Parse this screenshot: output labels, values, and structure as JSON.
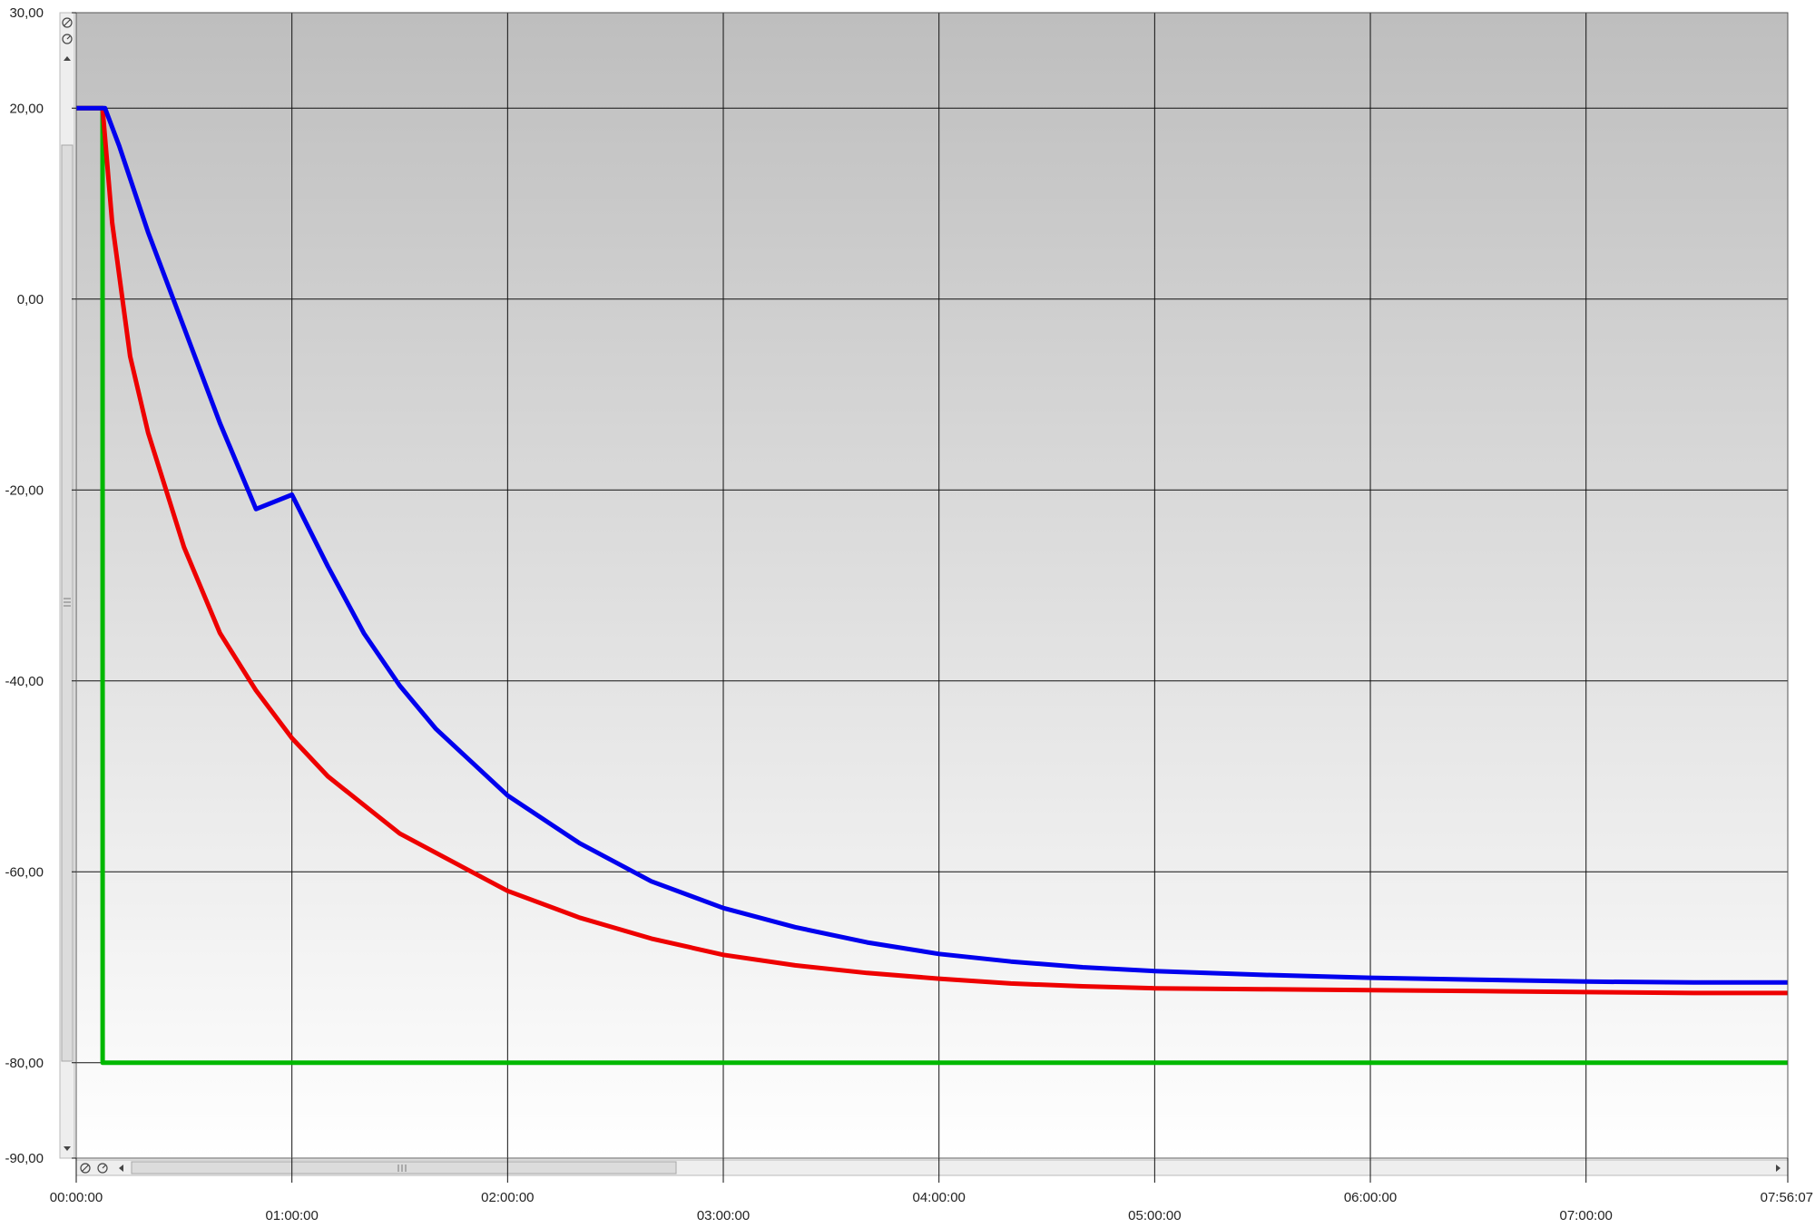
{
  "chart_data": {
    "type": "line",
    "title": "",
    "xlabel": "",
    "ylabel": "",
    "x_unit": "hh:mm:ss",
    "xlim_seconds": [
      0,
      28567
    ],
    "ylim": [
      -90,
      30
    ],
    "grid": true,
    "background": {
      "top": "#bebebe",
      "bottom": "#ffffff"
    },
    "y_ticks": [
      {
        "value": 30,
        "label": "30,00"
      },
      {
        "value": 20,
        "label": "20,00"
      },
      {
        "value": 0,
        "label": "0,00"
      },
      {
        "value": -20,
        "label": "-20,00"
      },
      {
        "value": -40,
        "label": "-40,00"
      },
      {
        "value": -60,
        "label": "-60,00"
      },
      {
        "value": -80,
        "label": "-80,00"
      },
      {
        "value": -90,
        "label": "-90,00"
      }
    ],
    "x_ticks": [
      {
        "value": 0,
        "label": "00:00:00"
      },
      {
        "value": 3600,
        "label": "01:00:00"
      },
      {
        "value": 7200,
        "label": "02:00:00"
      },
      {
        "value": 10800,
        "label": "03:00:00"
      },
      {
        "value": 14400,
        "label": "04:00:00"
      },
      {
        "value": 18000,
        "label": "05:00:00"
      },
      {
        "value": 21600,
        "label": "06:00:00"
      },
      {
        "value": 25200,
        "label": "07:00:00"
      },
      {
        "value": 28567,
        "label": "07:56:07"
      }
    ],
    "series": [
      {
        "color": "#00b800",
        "x": [
          0,
          440,
          441,
          28567
        ],
        "y": [
          20,
          20,
          -80,
          -80
        ]
      },
      {
        "color": "#ee0000",
        "x": [
          0,
          440,
          600,
          900,
          1200,
          1800,
          2400,
          3000,
          3600,
          4200,
          4800,
          5400,
          6000,
          7200,
          8400,
          9600,
          10800,
          12000,
          13200,
          14400,
          15600,
          16800,
          18000,
          19800,
          21600,
          23400,
          25200,
          27000,
          28567
        ],
        "y": [
          20,
          20,
          8,
          -6,
          -14,
          -26,
          -35,
          -41,
          -46,
          -50,
          -53,
          -56,
          -58,
          -62,
          -64.8,
          -67,
          -68.7,
          -69.8,
          -70.6,
          -71.2,
          -71.7,
          -72.0,
          -72.2,
          -72.3,
          -72.4,
          -72.5,
          -72.6,
          -72.7,
          -72.7
        ]
      },
      {
        "color": "#0000ee",
        "x": [
          0,
          480,
          720,
          1200,
          1800,
          2400,
          3000,
          3600,
          4200,
          4800,
          5400,
          6000,
          7200,
          8400,
          9600,
          10800,
          12000,
          13200,
          14400,
          15600,
          16800,
          18000,
          19800,
          21600,
          23400,
          25200,
          27000,
          28567
        ],
        "y": [
          20,
          20,
          16,
          7,
          -3,
          -13,
          -22,
          -20.5,
          -28,
          -35,
          -40.5,
          -45,
          -52,
          -57,
          -61,
          -63.8,
          -65.8,
          -67.4,
          -68.6,
          -69.4,
          -70.0,
          -70.4,
          -70.8,
          -71.1,
          -71.3,
          -71.5,
          -71.6,
          -71.6
        ]
      }
    ]
  }
}
